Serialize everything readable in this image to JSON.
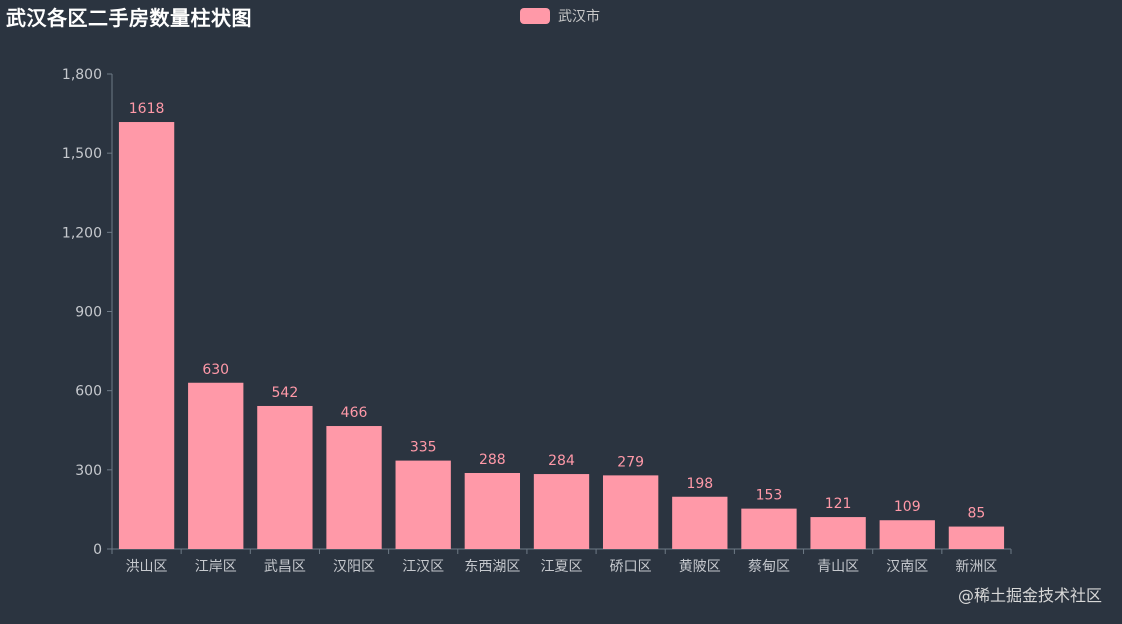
{
  "title": "武汉各区二手房数量柱状图",
  "legend": {
    "label": "武汉市"
  },
  "watermark": "@稀土掘金技术社区",
  "colors": {
    "background": "#2b3440",
    "bar": "#ff99a8",
    "axis": "#6e7a86",
    "tick_text": "#c6c9ce",
    "label_text": "#ff99a8"
  },
  "chart_data": {
    "type": "bar",
    "categories": [
      "洪山区",
      "江岸区",
      "武昌区",
      "汉阳区",
      "江汉区",
      "东西湖区",
      "江夏区",
      "硚口区",
      "黄陂区",
      "蔡甸区",
      "青山区",
      "汉南区",
      "新洲区"
    ],
    "series": [
      {
        "name": "武汉市",
        "values": [
          1618,
          630,
          542,
          466,
          335,
          288,
          284,
          279,
          198,
          153,
          121,
          109,
          85
        ]
      }
    ],
    "title": "武汉各区二手房数量柱状图",
    "xlabel": "",
    "ylabel": "",
    "ylim": [
      0,
      1800
    ],
    "yticks": [
      0,
      300,
      600,
      900,
      1200,
      1500,
      1800
    ],
    "ytick_labels": [
      "0",
      "300",
      "600",
      "900",
      "1,200",
      "1,500",
      "1,800"
    ],
    "grid": false,
    "legend_position": "top-center",
    "data_labels": true
  }
}
